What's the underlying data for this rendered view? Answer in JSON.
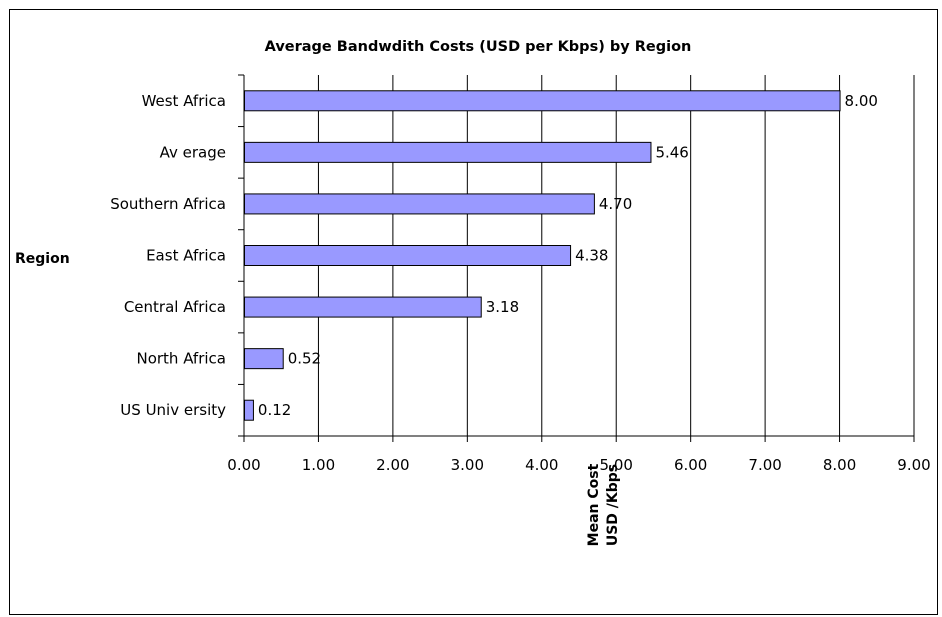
{
  "chart_data": {
    "type": "bar",
    "orientation": "horizontal",
    "title": "Average Bandwdith Costs (USD per Kbps) by Region",
    "ylabel": "Region",
    "xlabel_lines": [
      "Mean Cost",
      "USD /Kbps"
    ],
    "categories": [
      "West Africa",
      "Av erage",
      "Southern Africa",
      "East Africa",
      "Central Africa",
      "North Africa",
      "US Univ ersity"
    ],
    "values": [
      8.0,
      5.46,
      4.7,
      4.38,
      3.18,
      0.52,
      0.12
    ],
    "data_labels": [
      "8.00",
      "5.46",
      "4.70",
      "4.38",
      "3.18",
      "0.52",
      "0.12"
    ],
    "xlim": [
      0,
      9
    ],
    "xticks": [
      "0.00",
      "1.00",
      "2.00",
      "3.00",
      "4.00",
      "5.00",
      "6.00",
      "7.00",
      "8.00",
      "9.00"
    ],
    "grid": "vertical",
    "legend": "none",
    "colors": {
      "bar_fill": "#9999ff",
      "bar_stroke": "#000000",
      "grid": "#000000"
    }
  }
}
